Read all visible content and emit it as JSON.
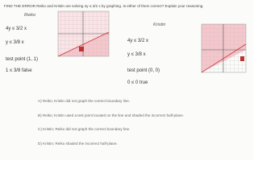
{
  "header": {
    "prompt": "FIND THE ERROR Reiko and Kristin are solving 4y ≤ 3/2 x by graphing. Is either of them correct? Explain your reasoning."
  },
  "reiko": {
    "name": "Reiko",
    "steps": [
      "4y ≤ 3/2 x",
      "y ≤ 3/8 x",
      "test point (1, 1)",
      "1 ≤ 3/8 false"
    ]
  },
  "kristin": {
    "name": "Kristin",
    "steps": [
      "4y ≤ 3/2 x",
      "y ≤ 3/8 x",
      "test point (0, 0)",
      "0 ≤ 0 true"
    ]
  },
  "options": [
    "A) Reiko; Kristin did not graph the correct boundary line.",
    "B) Reiko; Kristin used a test point located on the line and shaded the incorrect half-plane.",
    "C) Kristin; Reiko did not graph the correct boundary line.",
    "D) Kristin; Reiko shaded the incorrect half-plane."
  ]
}
